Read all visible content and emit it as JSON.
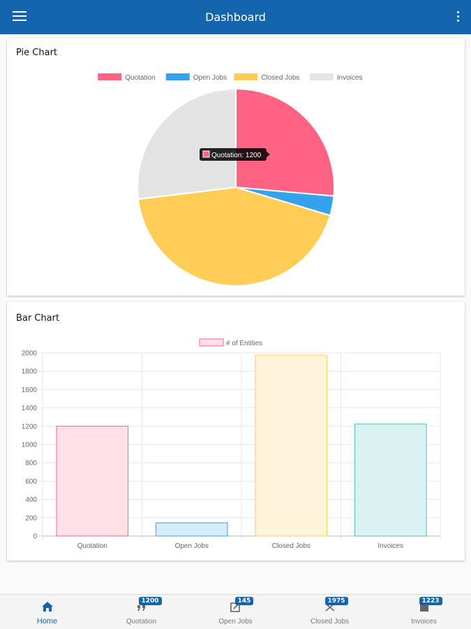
{
  "appbar": {
    "title": "Dashboard"
  },
  "colors": {
    "primary": "#1565ad",
    "quotation": "#ff6384",
    "open_jobs": "#36a2eb",
    "closed_jobs": "#ffcd56",
    "invoices": "#e4e4e4"
  },
  "pie_card": {
    "title": "Pie Chart",
    "tooltip": "Quotation: 1200"
  },
  "bar_card": {
    "title": "Bar Chart"
  },
  "chart_data": [
    {
      "type": "pie",
      "title": "Pie Chart",
      "categories": [
        "Quotation",
        "Open Jobs",
        "Closed Jobs",
        "Invoices"
      ],
      "values": [
        1200,
        145,
        1975,
        1223
      ],
      "colors": [
        "#ff6384",
        "#36a2eb",
        "#ffcd56",
        "#e4e4e4"
      ],
      "legend": "top"
    },
    {
      "type": "bar",
      "title": "Bar Chart",
      "categories": [
        "Quotation",
        "Open Jobs",
        "Closed Jobs",
        "Invoices"
      ],
      "series": [
        {
          "name": "# of Entities",
          "values": [
            1200,
            145,
            1975,
            1223
          ]
        }
      ],
      "ylim": [
        0,
        2000
      ],
      "yticks": [
        "0",
        "200",
        "400",
        "600",
        "800",
        "1000",
        "1200",
        "1400",
        "1600",
        "1800",
        "2000"
      ],
      "fill_colors": [
        "#ffe0e6",
        "#d7ecfb",
        "#fff5dd",
        "#dbf2f2"
      ],
      "stroke_colors": [
        "#ff6384",
        "#36a2eb",
        "#ffcd56",
        "#4bc0c0"
      ],
      "grid": true,
      "legend": "top"
    }
  ],
  "bottomnav": {
    "items": [
      {
        "label": "Home",
        "icon": "home-icon",
        "badge": ""
      },
      {
        "label": "Quotation",
        "icon": "quote-icon",
        "badge": "1200"
      },
      {
        "label": "Open Jobs",
        "icon": "open-jobs-icon",
        "badge": "145"
      },
      {
        "label": "Closed Jobs",
        "icon": "closed-jobs-icon",
        "badge": "1975"
      },
      {
        "label": "Invoices",
        "icon": "invoice-icon",
        "badge": "1223"
      }
    ]
  }
}
